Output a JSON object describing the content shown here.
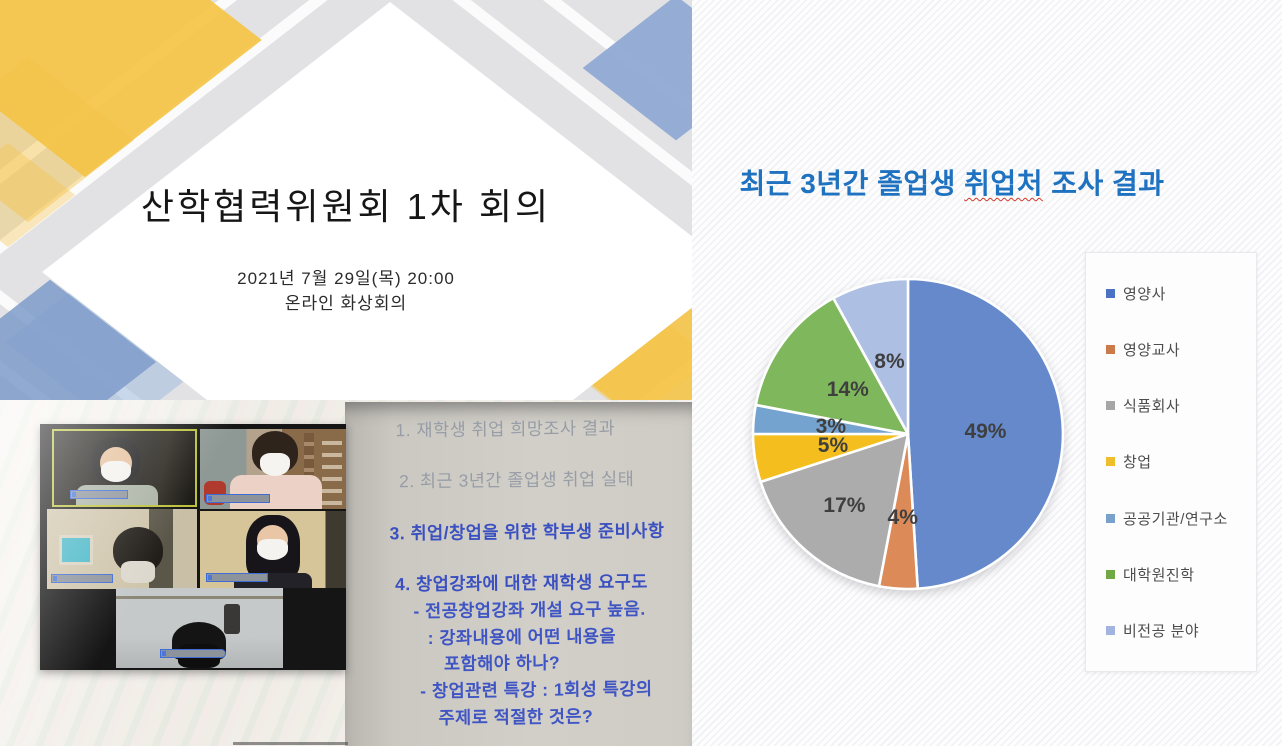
{
  "title_slide": {
    "title": "산학협력위원회 1차 회의",
    "date_line": "2021년 7월 29일(목)  20:00",
    "location_line": "온라인 화상회의",
    "accent_colors": {
      "yellow": "#F5C445",
      "blue_light": "#A9BFE0",
      "blue": "#7D9BCA",
      "background_gray": "#E2E2E4"
    }
  },
  "photo": {
    "participant_count": 5,
    "agenda_items": [
      {
        "text": "1. 재학생 취업 희망조사 결과",
        "emphasis": false
      },
      {
        "text": "2. 최근 3년간 졸업생 취업 실태",
        "emphasis": false
      },
      {
        "text": "3. 취업/창업을 위한 학부생 준비사항",
        "emphasis": true
      },
      {
        "text": "4. 창업강좌에 대한 재학생 요구도",
        "emphasis": true
      }
    ],
    "agenda_subitems": [
      "- 전공창업강좌 개설 요구 높음.",
      ": 강좌내용에 어떤 내용을",
      "포함해야 하나?",
      "- 창업관련 특강 : 1회성 특강의",
      "주제로 적절한 것은?"
    ]
  },
  "chart_panel": {
    "title_pre": "최근 3년간 졸업생 ",
    "title_underlined": "취업처",
    "title_post": " 조사 결과",
    "title_color": "#1F72C0"
  },
  "chart_data": {
    "type": "pie",
    "title": "최근 3년간 졸업생 취업처 조사 결과",
    "categories": [
      "영양사",
      "영양교사",
      "식품회사",
      "창업",
      "공공기관/연구소",
      "대학원진학",
      "비전공 분야"
    ],
    "values": [
      49,
      4,
      17,
      5,
      3,
      14,
      8
    ],
    "labels": [
      "49%",
      "4%",
      "17%",
      "5%",
      "3%",
      "14%",
      "8%"
    ],
    "colors": [
      "#6589CB",
      "#DC8A58",
      "#ACACAC",
      "#F3BE1E",
      "#74A3CF",
      "#7FB85C",
      "#AEBFE4"
    ],
    "legend_colors": [
      "#4C72C4",
      "#CB7A49",
      "#A6A6A6",
      "#EFBE2D",
      "#78A2CC",
      "#6FA845",
      "#A3B4E0"
    ],
    "start_angle_deg": 0,
    "direction": "clockwise",
    "legend_position": "right",
    "data_label_color": "#3F3F3F",
    "unit": "%"
  }
}
